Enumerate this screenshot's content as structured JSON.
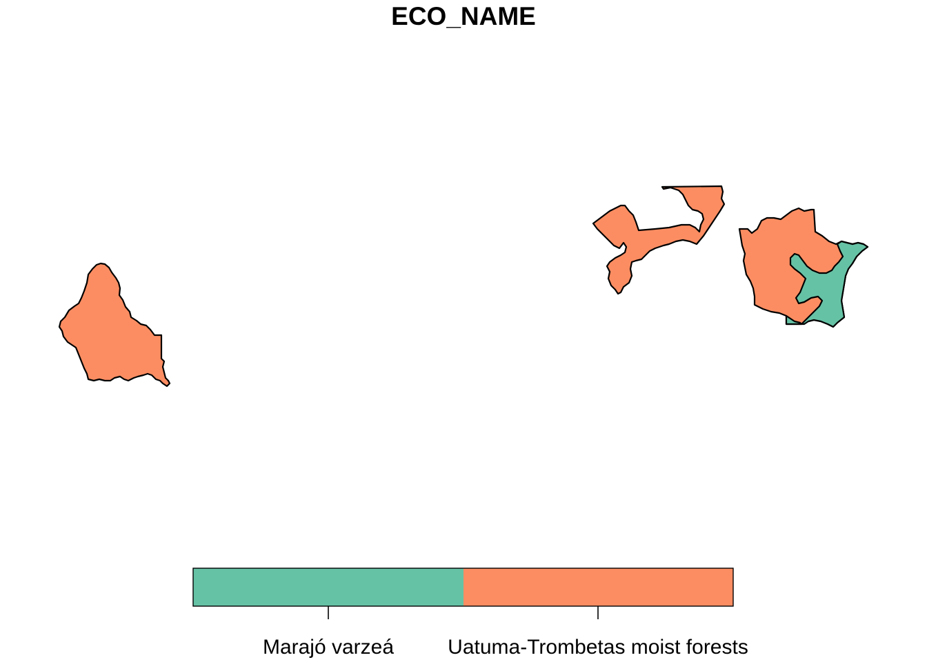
{
  "map": {
    "title": "ECO_NAME",
    "categories": [
      {
        "name": "Marajó varzeá",
        "color": "#66C2A5"
      },
      {
        "name": "Uatuma-Trombetas moist forests",
        "color": "#FC8D62"
      }
    ],
    "regions": [
      {
        "id": "west-polygon",
        "category": "Uatuma-Trombetas moist forests"
      },
      {
        "id": "central-polygon",
        "category": "Uatuma-Trombetas moist forests"
      },
      {
        "id": "east-polygon",
        "category": "Uatuma-Trombetas moist forests"
      },
      {
        "id": "east-varzea-polygon",
        "category": "Marajó varzeá"
      }
    ]
  },
  "legend": {
    "labels": [
      "Marajó varzeá",
      "Uatuma-Trombetas moist forests"
    ]
  }
}
